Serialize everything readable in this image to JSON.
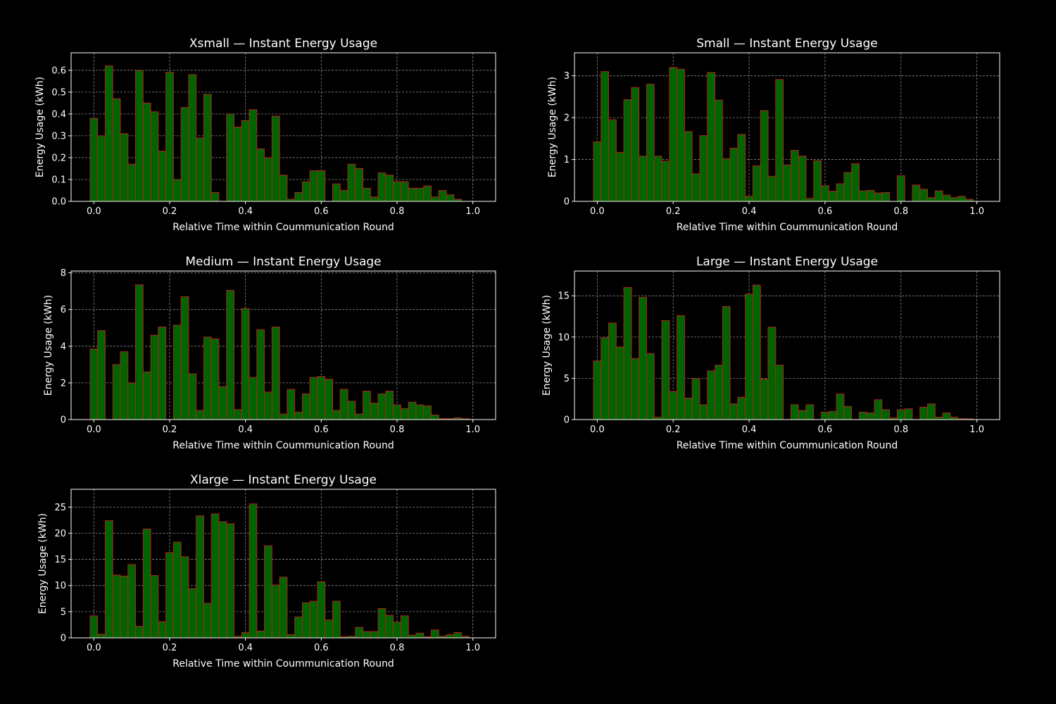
{
  "colors": {
    "background": "#000000",
    "bar_fill": "#006400",
    "bar_edge": "#b22222",
    "text": "#ffffff",
    "grid": "#8a8a8a"
  },
  "chart_data": [
    {
      "type": "bar",
      "title": "Xsmall — Instant Energy Usage",
      "xlabel": "Relative Time within Coummunication Round",
      "ylabel": "Energy Usage (kWh)",
      "xlim": [
        -0.06,
        1.06
      ],
      "ylim": [
        0,
        0.68
      ],
      "xticks": [
        "0.0",
        "0.2",
        "0.4",
        "0.6",
        "0.8",
        "1.0"
      ],
      "yticks": [
        "0.0",
        "0.1",
        "0.2",
        "0.3",
        "0.4",
        "0.5",
        "0.6"
      ],
      "grid": true,
      "bin_width": 0.02,
      "x": [
        0.0,
        0.02,
        0.04,
        0.06,
        0.08,
        0.1,
        0.12,
        0.14,
        0.16,
        0.18,
        0.2,
        0.22,
        0.24,
        0.26,
        0.28,
        0.3,
        0.32,
        0.34,
        0.36,
        0.38,
        0.4,
        0.42,
        0.44,
        0.46,
        0.48,
        0.5,
        0.52,
        0.54,
        0.56,
        0.58,
        0.6,
        0.62,
        0.64,
        0.66,
        0.68,
        0.7,
        0.72,
        0.74,
        0.76,
        0.78,
        0.8,
        0.82,
        0.84,
        0.86,
        0.88,
        0.9,
        0.92,
        0.94,
        0.96,
        0.98,
        1.0
      ],
      "values": [
        0.38,
        0.3,
        0.62,
        0.47,
        0.31,
        0.17,
        0.6,
        0.45,
        0.41,
        0.23,
        0.59,
        0.1,
        0.43,
        0.58,
        0.29,
        0.49,
        0.04,
        0.0,
        0.4,
        0.34,
        0.37,
        0.42,
        0.24,
        0.2,
        0.39,
        0.12,
        0.01,
        0.04,
        0.09,
        0.14,
        0.14,
        0.0,
        0.08,
        0.05,
        0.17,
        0.15,
        0.06,
        0.02,
        0.13,
        0.12,
        0.09,
        0.09,
        0.06,
        0.06,
        0.07,
        0.02,
        0.05,
        0.03,
        0.01,
        0.0,
        0.0
      ]
    },
    {
      "type": "bar",
      "title": "Small — Instant Energy Usage",
      "xlabel": "Relative Time within Coummunication Round",
      "ylabel": "Energy Usage (kWh)",
      "xlim": [
        -0.06,
        1.06
      ],
      "ylim": [
        0,
        3.55
      ],
      "xticks": [
        "0.0",
        "0.2",
        "0.4",
        "0.6",
        "0.8",
        "1.0"
      ],
      "yticks": [
        "0",
        "1",
        "2",
        "3"
      ],
      "grid": true,
      "bin_width": 0.02,
      "x": [
        0.0,
        0.02,
        0.04,
        0.06,
        0.08,
        0.1,
        0.12,
        0.14,
        0.16,
        0.18,
        0.2,
        0.22,
        0.24,
        0.26,
        0.28,
        0.3,
        0.32,
        0.34,
        0.36,
        0.38,
        0.4,
        0.42,
        0.44,
        0.46,
        0.48,
        0.5,
        0.52,
        0.54,
        0.56,
        0.58,
        0.6,
        0.62,
        0.64,
        0.66,
        0.68,
        0.7,
        0.72,
        0.74,
        0.76,
        0.78,
        0.8,
        0.82,
        0.84,
        0.86,
        0.88,
        0.9,
        0.92,
        0.94,
        0.96,
        0.98,
        1.0
      ],
      "values": [
        1.42,
        3.1,
        1.95,
        1.17,
        2.43,
        2.72,
        1.08,
        2.8,
        1.08,
        0.96,
        3.2,
        3.16,
        1.67,
        0.66,
        1.57,
        3.08,
        2.42,
        1.02,
        1.27,
        1.6,
        0.12,
        0.85,
        2.17,
        0.6,
        2.91,
        0.87,
        1.22,
        1.08,
        0.07,
        0.97,
        0.37,
        0.24,
        0.42,
        0.69,
        0.9,
        0.25,
        0.26,
        0.2,
        0.21,
        0.0,
        0.61,
        0.0,
        0.39,
        0.29,
        0.09,
        0.25,
        0.15,
        0.09,
        0.12,
        0.05,
        0.0
      ]
    },
    {
      "type": "bar",
      "title": "Medium — Instant Energy Usage",
      "xlabel": "Relative Time within Coummunication Round",
      "ylabel": "Energy Usage (kWh)",
      "xlim": [
        -0.06,
        1.06
      ],
      "ylim": [
        0,
        8.1
      ],
      "xticks": [
        "0.0",
        "0.2",
        "0.4",
        "0.6",
        "0.8",
        "1.0"
      ],
      "yticks": [
        "0",
        "2",
        "4",
        "6",
        "8"
      ],
      "grid": true,
      "bin_width": 0.02,
      "x": [
        0.0,
        0.02,
        0.04,
        0.06,
        0.08,
        0.1,
        0.12,
        0.14,
        0.16,
        0.18,
        0.2,
        0.22,
        0.24,
        0.26,
        0.28,
        0.3,
        0.32,
        0.34,
        0.36,
        0.38,
        0.4,
        0.42,
        0.44,
        0.46,
        0.48,
        0.5,
        0.52,
        0.54,
        0.56,
        0.58,
        0.6,
        0.62,
        0.64,
        0.66,
        0.68,
        0.7,
        0.72,
        0.74,
        0.76,
        0.78,
        0.8,
        0.82,
        0.84,
        0.86,
        0.88,
        0.9,
        0.92,
        0.94,
        0.96,
        0.98,
        1.0
      ],
      "values": [
        3.85,
        4.85,
        0.0,
        3.0,
        3.7,
        2.0,
        7.35,
        2.6,
        4.6,
        5.05,
        0.0,
        5.15,
        6.7,
        2.5,
        0.5,
        4.5,
        4.4,
        1.8,
        7.05,
        0.55,
        6.05,
        2.3,
        4.9,
        1.5,
        5.05,
        0.3,
        1.65,
        0.4,
        1.4,
        2.3,
        2.35,
        2.2,
        0.5,
        1.65,
        1.0,
        0.3,
        1.55,
        0.9,
        1.4,
        1.55,
        0.8,
        0.6,
        0.95,
        0.8,
        0.75,
        0.25,
        0.05,
        0.05,
        0.1,
        0.05,
        0.0
      ]
    },
    {
      "type": "bar",
      "title": "Large — Instant Energy Usage",
      "xlabel": "Relative Time within Coummunication Round",
      "ylabel": "Energy Usage (kWh)",
      "xlim": [
        -0.06,
        1.06
      ],
      "ylim": [
        0,
        18.0
      ],
      "xticks": [
        "0.0",
        "0.2",
        "0.4",
        "0.6",
        "0.8",
        "1.0"
      ],
      "yticks": [
        "0",
        "5",
        "10",
        "15"
      ],
      "grid": true,
      "bin_width": 0.02,
      "x": [
        0.0,
        0.02,
        0.04,
        0.06,
        0.08,
        0.1,
        0.12,
        0.14,
        0.16,
        0.18,
        0.2,
        0.22,
        0.24,
        0.26,
        0.28,
        0.3,
        0.32,
        0.34,
        0.36,
        0.38,
        0.4,
        0.42,
        0.44,
        0.46,
        0.48,
        0.5,
        0.52,
        0.54,
        0.56,
        0.58,
        0.6,
        0.62,
        0.64,
        0.66,
        0.68,
        0.7,
        0.72,
        0.74,
        0.76,
        0.78,
        0.8,
        0.82,
        0.84,
        0.86,
        0.88,
        0.9,
        0.92,
        0.94,
        0.96,
        0.98,
        1.0
      ],
      "values": [
        7.1,
        9.9,
        11.7,
        8.8,
        16.0,
        7.4,
        14.8,
        8.0,
        0.3,
        12.0,
        3.4,
        12.6,
        2.6,
        5.0,
        1.8,
        5.9,
        6.6,
        13.7,
        1.9,
        2.7,
        15.2,
        16.3,
        4.9,
        11.2,
        6.6,
        0.0,
        1.8,
        1.1,
        1.8,
        0.0,
        0.9,
        1.0,
        3.1,
        1.6,
        0.0,
        0.9,
        0.8,
        2.4,
        1.2,
        0.2,
        1.2,
        1.3,
        0.0,
        1.5,
        1.9,
        0.3,
        0.8,
        0.3,
        0.1,
        0.1,
        0.0
      ]
    },
    {
      "type": "bar",
      "title": "Xlarge — Instant Energy Usage",
      "xlabel": "Relative Time within Coummunication Round",
      "ylabel": "Energy Usage (kWh)",
      "xlim": [
        -0.06,
        1.06
      ],
      "ylim": [
        0,
        28.4
      ],
      "xticks": [
        "0.0",
        "0.2",
        "0.4",
        "0.6",
        "0.8",
        "1.0"
      ],
      "yticks": [
        "0",
        "5",
        "10",
        "15",
        "20",
        "25"
      ],
      "grid": true,
      "bin_width": 0.02,
      "x": [
        0.0,
        0.02,
        0.04,
        0.06,
        0.08,
        0.1,
        0.12,
        0.14,
        0.16,
        0.18,
        0.2,
        0.22,
        0.24,
        0.26,
        0.28,
        0.3,
        0.32,
        0.34,
        0.36,
        0.38,
        0.4,
        0.42,
        0.44,
        0.46,
        0.48,
        0.5,
        0.52,
        0.54,
        0.56,
        0.58,
        0.6,
        0.62,
        0.64,
        0.66,
        0.68,
        0.7,
        0.72,
        0.74,
        0.76,
        0.78,
        0.8,
        0.82,
        0.84,
        0.86,
        0.88,
        0.9,
        0.92,
        0.94,
        0.96,
        0.98,
        1.0
      ],
      "values": [
        4.2,
        0.7,
        22.4,
        12.0,
        11.8,
        14.0,
        2.2,
        20.8,
        11.9,
        3.1,
        16.3,
        18.3,
        15.5,
        9.4,
        23.3,
        6.6,
        23.7,
        22.2,
        21.8,
        0.3,
        1.0,
        25.6,
        1.3,
        17.6,
        10.1,
        11.6,
        0.6,
        4.0,
        6.7,
        7.0,
        10.7,
        3.4,
        7.0,
        0.2,
        0.3,
        2.0,
        1.2,
        1.2,
        5.6,
        4.3,
        3.0,
        4.2,
        0.5,
        0.9,
        0.2,
        1.5,
        0.3,
        0.6,
        1.0,
        0.3,
        0.0
      ]
    }
  ]
}
